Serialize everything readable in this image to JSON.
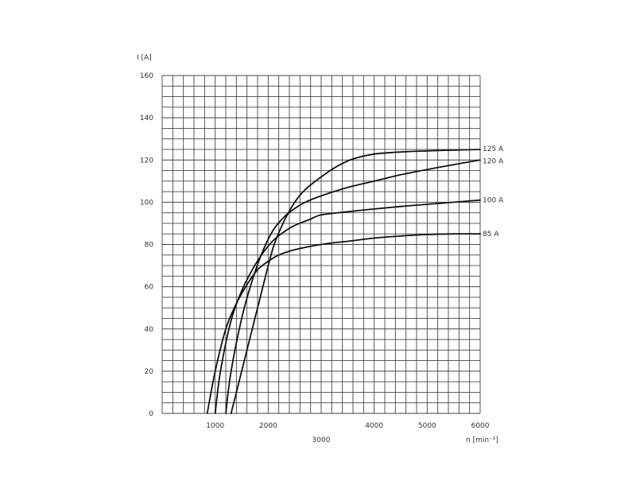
{
  "chart_data": {
    "type": "line",
    "ylabel": "I [A]",
    "xlabel": "n [min⁻¹]",
    "xlim": [
      0,
      6000
    ],
    "ylim": [
      0,
      160
    ],
    "grid": true,
    "x_ticks": [
      "1000",
      "2000",
      "3000",
      "4000",
      "5000",
      "6000"
    ],
    "y_ticks": [
      "0",
      "20",
      "40",
      "60",
      "80",
      "100",
      "120",
      "140",
      "160"
    ],
    "series": [
      {
        "name": "125 A",
        "x": [
          1300,
          1500,
          1700,
          1900,
          2100,
          2300,
          2500,
          2700,
          3000,
          3300,
          3600,
          4000,
          4500,
          5000,
          5500,
          6000
        ],
        "y": [
          0,
          20,
          40,
          60,
          79,
          91,
          100,
          106,
          112,
          117,
          120.5,
          122.8,
          123.8,
          124.3,
          124.7,
          125
        ]
      },
      {
        "name": "120 A",
        "x": [
          1200,
          1300,
          1500,
          1700,
          1900,
          2100,
          2300,
          2500,
          2700,
          3000,
          3500,
          4000,
          4500,
          5000,
          5500,
          6000
        ],
        "y": [
          0,
          20,
          45,
          63,
          77,
          87,
          93,
          97,
          100,
          103,
          107,
          110,
          113,
          115.5,
          117.8,
          120
        ]
      },
      {
        "name": "100 A",
        "x": [
          1000,
          1100,
          1300,
          1500,
          1700,
          1900,
          2100,
          2300,
          2500,
          2800,
          3000,
          3500,
          4000,
          4500,
          5000,
          5500,
          6000
        ],
        "y": [
          0,
          20,
          44,
          58,
          68,
          76,
          82,
          86,
          89,
          92,
          94,
          95.5,
          96.8,
          98,
          99,
          100,
          101
        ]
      },
      {
        "name": "85 A",
        "x": [
          850,
          1000,
          1200,
          1400,
          1600,
          1800,
          2000,
          2200,
          2500,
          3000,
          3500,
          4000,
          4500,
          5000,
          5500,
          6000
        ],
        "y": [
          0,
          20,
          40,
          52,
          61,
          68,
          72,
          75,
          77.5,
          80,
          81.5,
          83,
          84,
          84.7,
          85,
          85
        ]
      }
    ]
  }
}
